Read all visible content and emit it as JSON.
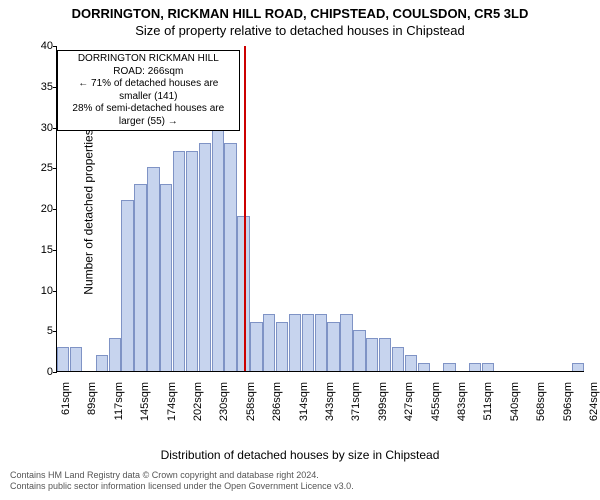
{
  "titles": {
    "line1": "DORRINGTON, RICKMAN HILL ROAD, CHIPSTEAD, COULSDON, CR5 3LD",
    "line2": "Size of property relative to detached houses in Chipstead"
  },
  "chart": {
    "type": "histogram",
    "ylabel": "Number of detached properties",
    "xlabel": "Distribution of detached houses by size in Chipstead",
    "ylim": [
      0,
      40
    ],
    "ytick_step": 5,
    "bar_fill": "#c7d4ee",
    "bar_stroke": "#7f93c5",
    "vline_color": "#cc0000",
    "vline_x": 266,
    "background_color": "#ffffff",
    "x_start": 61,
    "x_end": 638,
    "bin_width": 14,
    "x_tick_labels": [
      "61sqm",
      "89sqm",
      "117sqm",
      "145sqm",
      "174sqm",
      "202sqm",
      "230sqm",
      "258sqm",
      "286sqm",
      "314sqm",
      "343sqm",
      "371sqm",
      "399sqm",
      "427sqm",
      "455sqm",
      "483sqm",
      "511sqm",
      "540sqm",
      "568sqm",
      "596sqm",
      "624sqm"
    ],
    "values": [
      3,
      3,
      0,
      2,
      4,
      21,
      23,
      25,
      23,
      27,
      27,
      28,
      31,
      28,
      19,
      6,
      7,
      6,
      7,
      7,
      7,
      6,
      7,
      5,
      4,
      4,
      3,
      2,
      1,
      0,
      1,
      0,
      1,
      1,
      0,
      0,
      0,
      0,
      0,
      0,
      1
    ]
  },
  "annotation": {
    "line1": "DORRINGTON RICKMAN HILL ROAD: 266sqm",
    "line2": "← 71% of detached houses are smaller (141)",
    "line3": "28% of semi-detached houses are larger (55) →",
    "box_border": "#000000",
    "box_bg": "#ffffff",
    "font_size": 10
  },
  "footer": {
    "line1": "Contains HM Land Registry data © Crown copyright and database right 2024.",
    "line2": "Contains public sector information licensed under the Open Government Licence v3.0.",
    "color": "#555555"
  }
}
